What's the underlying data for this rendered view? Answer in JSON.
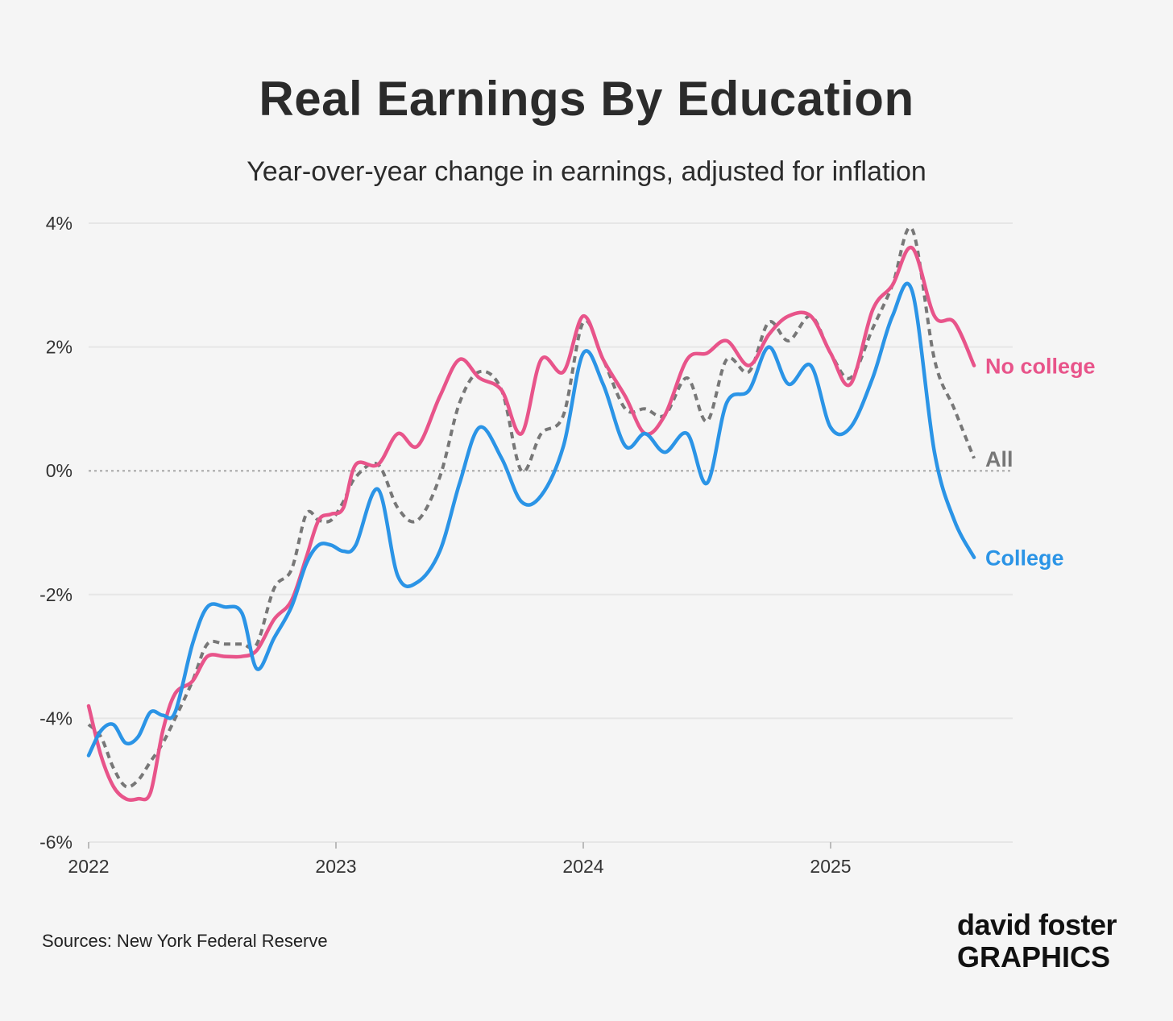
{
  "chart_data": {
    "type": "line",
    "title": "Real Earnings By Education",
    "subtitle": "Year-over-year change in earnings, adjusted for inflation",
    "xlabel": "",
    "ylabel": "",
    "xlim": [
      2022.0,
      2025.75
    ],
    "ylim": [
      -6,
      4
    ],
    "x_ticks": [
      2022,
      2023,
      2024,
      2025
    ],
    "x_tick_labels": [
      "2022",
      "2023",
      "2024",
      "2025"
    ],
    "y_ticks": [
      -6,
      -4,
      -2,
      0,
      2,
      4
    ],
    "y_tick_labels": [
      "-6%",
      "-4%",
      "-2%",
      "0%",
      "2%",
      "4%"
    ],
    "zero_line": true,
    "grid": "horizontal",
    "series": [
      {
        "name": "No college",
        "color": "#e8548a",
        "dashed": false,
        "label_position": "end",
        "points": [
          [
            2022.0,
            -3.8
          ],
          [
            2022.05,
            -4.6
          ],
          [
            2022.1,
            -5.1
          ],
          [
            2022.15,
            -5.3
          ],
          [
            2022.2,
            -5.3
          ],
          [
            2022.25,
            -5.2
          ],
          [
            2022.3,
            -4.2
          ],
          [
            2022.35,
            -3.6
          ],
          [
            2022.42,
            -3.4
          ],
          [
            2022.48,
            -3.0
          ],
          [
            2022.55,
            -3.0
          ],
          [
            2022.62,
            -3.0
          ],
          [
            2022.68,
            -2.9
          ],
          [
            2022.75,
            -2.4
          ],
          [
            2022.82,
            -2.1
          ],
          [
            2022.88,
            -1.4
          ],
          [
            2022.93,
            -0.8
          ],
          [
            2022.98,
            -0.7
          ],
          [
            2023.03,
            -0.6
          ],
          [
            2023.08,
            0.1
          ],
          [
            2023.17,
            0.1
          ],
          [
            2023.25,
            0.6
          ],
          [
            2023.33,
            0.4
          ],
          [
            2023.42,
            1.2
          ],
          [
            2023.5,
            1.8
          ],
          [
            2023.58,
            1.5
          ],
          [
            2023.67,
            1.3
          ],
          [
            2023.75,
            0.6
          ],
          [
            2023.83,
            1.8
          ],
          [
            2023.92,
            1.6
          ],
          [
            2024.0,
            2.5
          ],
          [
            2024.08,
            1.8
          ],
          [
            2024.17,
            1.2
          ],
          [
            2024.25,
            0.6
          ],
          [
            2024.33,
            0.9
          ],
          [
            2024.42,
            1.8
          ],
          [
            2024.5,
            1.9
          ],
          [
            2024.58,
            2.1
          ],
          [
            2024.67,
            1.7
          ],
          [
            2024.75,
            2.2
          ],
          [
            2024.83,
            2.5
          ],
          [
            2024.92,
            2.5
          ],
          [
            2025.0,
            1.9
          ],
          [
            2025.08,
            1.4
          ],
          [
            2025.17,
            2.6
          ],
          [
            2025.25,
            3.0
          ],
          [
            2025.33,
            3.6
          ],
          [
            2025.42,
            2.5
          ],
          [
            2025.5,
            2.4
          ],
          [
            2025.58,
            1.7
          ]
        ]
      },
      {
        "name": "All",
        "color": "#777777",
        "dashed": true,
        "label_position": "end",
        "points": [
          [
            2022.0,
            -4.1
          ],
          [
            2022.05,
            -4.3
          ],
          [
            2022.1,
            -4.8
          ],
          [
            2022.15,
            -5.1
          ],
          [
            2022.2,
            -5.0
          ],
          [
            2022.25,
            -4.7
          ],
          [
            2022.3,
            -4.4
          ],
          [
            2022.35,
            -4.0
          ],
          [
            2022.42,
            -3.4
          ],
          [
            2022.48,
            -2.8
          ],
          [
            2022.55,
            -2.8
          ],
          [
            2022.62,
            -2.8
          ],
          [
            2022.68,
            -2.8
          ],
          [
            2022.75,
            -1.9
          ],
          [
            2022.82,
            -1.6
          ],
          [
            2022.88,
            -0.7
          ],
          [
            2022.93,
            -0.8
          ],
          [
            2022.98,
            -0.8
          ],
          [
            2023.03,
            -0.5
          ],
          [
            2023.08,
            -0.1
          ],
          [
            2023.17,
            0.1
          ],
          [
            2023.25,
            -0.6
          ],
          [
            2023.33,
            -0.8
          ],
          [
            2023.42,
            -0.1
          ],
          [
            2023.5,
            1.1
          ],
          [
            2023.58,
            1.6
          ],
          [
            2023.67,
            1.3
          ],
          [
            2023.75,
            0.0
          ],
          [
            2023.83,
            0.6
          ],
          [
            2023.92,
            0.9
          ],
          [
            2024.0,
            2.4
          ],
          [
            2024.08,
            1.8
          ],
          [
            2024.17,
            1.0
          ],
          [
            2024.25,
            1.0
          ],
          [
            2024.33,
            0.9
          ],
          [
            2024.42,
            1.5
          ],
          [
            2024.5,
            0.8
          ],
          [
            2024.58,
            1.8
          ],
          [
            2024.67,
            1.6
          ],
          [
            2024.75,
            2.4
          ],
          [
            2024.83,
            2.1
          ],
          [
            2024.92,
            2.5
          ],
          [
            2025.0,
            1.9
          ],
          [
            2025.08,
            1.5
          ],
          [
            2025.17,
            2.3
          ],
          [
            2025.25,
            3.0
          ],
          [
            2025.33,
            3.9
          ],
          [
            2025.42,
            1.8
          ],
          [
            2025.5,
            1.0
          ],
          [
            2025.58,
            0.2
          ]
        ]
      },
      {
        "name": "College",
        "color": "#2b94e6",
        "dashed": false,
        "label_position": "end",
        "points": [
          [
            2022.0,
            -4.6
          ],
          [
            2022.05,
            -4.2
          ],
          [
            2022.1,
            -4.1
          ],
          [
            2022.15,
            -4.4
          ],
          [
            2022.2,
            -4.3
          ],
          [
            2022.25,
            -3.9
          ],
          [
            2022.3,
            -3.95
          ],
          [
            2022.35,
            -3.9
          ],
          [
            2022.42,
            -2.8
          ],
          [
            2022.48,
            -2.2
          ],
          [
            2022.55,
            -2.2
          ],
          [
            2022.62,
            -2.3
          ],
          [
            2022.68,
            -3.2
          ],
          [
            2022.75,
            -2.7
          ],
          [
            2022.82,
            -2.2
          ],
          [
            2022.88,
            -1.5
          ],
          [
            2022.93,
            -1.2
          ],
          [
            2022.98,
            -1.2
          ],
          [
            2023.03,
            -1.3
          ],
          [
            2023.08,
            -1.2
          ],
          [
            2023.17,
            -0.3
          ],
          [
            2023.25,
            -1.7
          ],
          [
            2023.33,
            -1.8
          ],
          [
            2023.42,
            -1.3
          ],
          [
            2023.5,
            -0.2
          ],
          [
            2023.58,
            0.7
          ],
          [
            2023.67,
            0.2
          ],
          [
            2023.75,
            -0.5
          ],
          [
            2023.83,
            -0.4
          ],
          [
            2023.92,
            0.4
          ],
          [
            2024.0,
            1.9
          ],
          [
            2024.08,
            1.4
          ],
          [
            2024.17,
            0.4
          ],
          [
            2024.25,
            0.6
          ],
          [
            2024.33,
            0.3
          ],
          [
            2024.42,
            0.6
          ],
          [
            2024.5,
            -0.2
          ],
          [
            2024.58,
            1.1
          ],
          [
            2024.67,
            1.3
          ],
          [
            2024.75,
            2.0
          ],
          [
            2024.83,
            1.4
          ],
          [
            2024.92,
            1.7
          ],
          [
            2025.0,
            0.7
          ],
          [
            2025.08,
            0.7
          ],
          [
            2025.17,
            1.5
          ],
          [
            2025.25,
            2.5
          ],
          [
            2025.33,
            2.9
          ],
          [
            2025.42,
            0.3
          ],
          [
            2025.5,
            -0.8
          ],
          [
            2025.58,
            -1.4
          ]
        ]
      }
    ]
  },
  "footer": {
    "source": "Sources: New York Federal Reserve",
    "brand_line1": "david foster",
    "brand_line2": "GRAPHICS"
  }
}
